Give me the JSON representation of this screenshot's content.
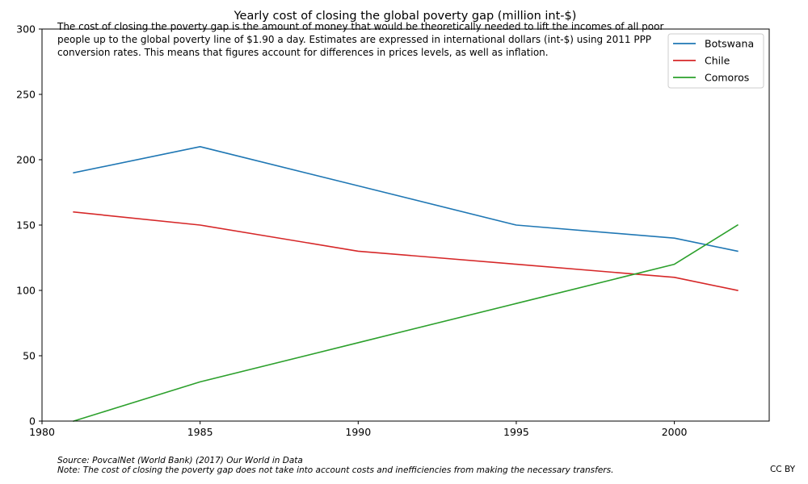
{
  "chart_data": {
    "type": "line",
    "title": "Yearly cost of closing the global poverty gap (million int-$)",
    "subtitle": "The cost of closing the poverty gap is the amount of money that would be theoretically needed to lift the incomes of all poor people up to the global poverty line of $1.90 a day. Estimates are expressed in international dollars (int-$) using 2011 PPP conversion rates. This means that figures account for differences in prices levels, as well as inflation.",
    "x": [
      1981,
      1985,
      1990,
      1995,
      2000,
      2002
    ],
    "series": [
      {
        "name": "Botswana",
        "color": "#1f77b4",
        "values": [
          190,
          210,
          180,
          150,
          140,
          130
        ]
      },
      {
        "name": "Chile",
        "color": "#d62728",
        "values": [
          160,
          150,
          130,
          120,
          110,
          100
        ]
      },
      {
        "name": "Comoros",
        "color": "#2ca02c",
        "values": [
          0,
          30,
          60,
          90,
          120,
          150
        ]
      }
    ],
    "xlim": [
      1980,
      2003
    ],
    "ylim": [
      0,
      300
    ],
    "xticks": [
      1980,
      1985,
      1990,
      1995,
      2000
    ],
    "yticks": [
      0,
      50,
      100,
      150,
      200,
      250,
      300
    ],
    "xlabel": "",
    "ylabel": "",
    "grid": false,
    "legend_position": "top-right",
    "source": "Source: PovcalNet (World Bank) (2017) Our World in Data",
    "note": "Note: The cost of closing the poverty gap does not take into account costs and inefficiencies from making the necessary transfers.",
    "license": "CC BY"
  }
}
